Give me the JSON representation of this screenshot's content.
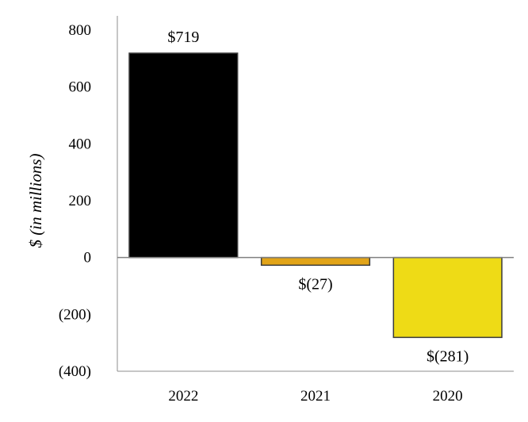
{
  "chart_data": {
    "type": "bar",
    "title": "",
    "xlabel": "",
    "ylabel": "$ (in millions)",
    "ylim": [
      -400,
      800
    ],
    "yticks": [
      800,
      600,
      400,
      200,
      0,
      -200,
      -400
    ],
    "ytick_labels": [
      "800",
      "600",
      "400",
      "200",
      "0",
      "(200)",
      "(400)"
    ],
    "grid": false,
    "legend": "none",
    "categories": [
      "2022",
      "2021",
      "2020"
    ],
    "values": [
      719,
      -27,
      -281
    ],
    "data_labels": [
      "$719",
      "$(27)",
      "$(281)"
    ],
    "colors": [
      "#000000",
      "#E2A418",
      "#EEDB16"
    ]
  }
}
